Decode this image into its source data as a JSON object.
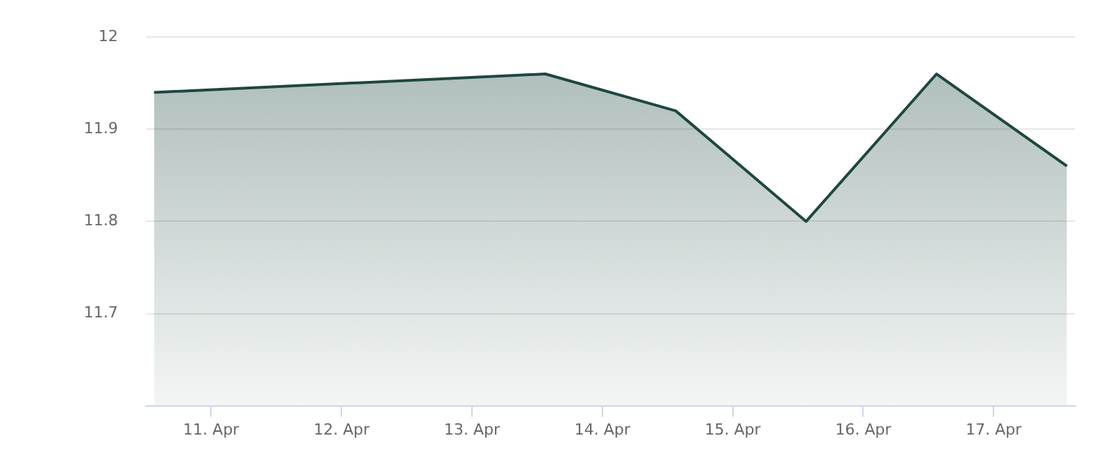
{
  "chart_data": {
    "type": "area",
    "x": [
      "--04-10T13:30",
      "--04-13T13:30",
      "--04-14T13:30",
      "--04-15T13:30",
      "--04-16T13:30",
      "--04-17T13:30"
    ],
    "series": [
      {
        "color": "#1d4740",
        "values": [
          11.94,
          11.96,
          11.92,
          11.8,
          11.96,
          11.86
        ]
      }
    ],
    "xlim": [
      "--04-10T12:00",
      "--04-17T15:00"
    ],
    "xticks": [
      {
        "value": "--04-11",
        "label": "11. Apr"
      },
      {
        "value": "--04-12",
        "label": "12. Apr"
      },
      {
        "value": "--04-13",
        "label": "13. Apr"
      },
      {
        "value": "--04-14",
        "label": "14. Apr"
      },
      {
        "value": "--04-15",
        "label": "15. Apr"
      },
      {
        "value": "--04-16",
        "label": "16. Apr"
      },
      {
        "value": "--04-17",
        "label": "17. Apr"
      }
    ],
    "ylim": [
      11.6,
      12
    ],
    "yticks": [
      11.7,
      11.8,
      11.9,
      12
    ],
    "grid": "y",
    "legend": false,
    "marker": "none",
    "line_style": "solid"
  }
}
